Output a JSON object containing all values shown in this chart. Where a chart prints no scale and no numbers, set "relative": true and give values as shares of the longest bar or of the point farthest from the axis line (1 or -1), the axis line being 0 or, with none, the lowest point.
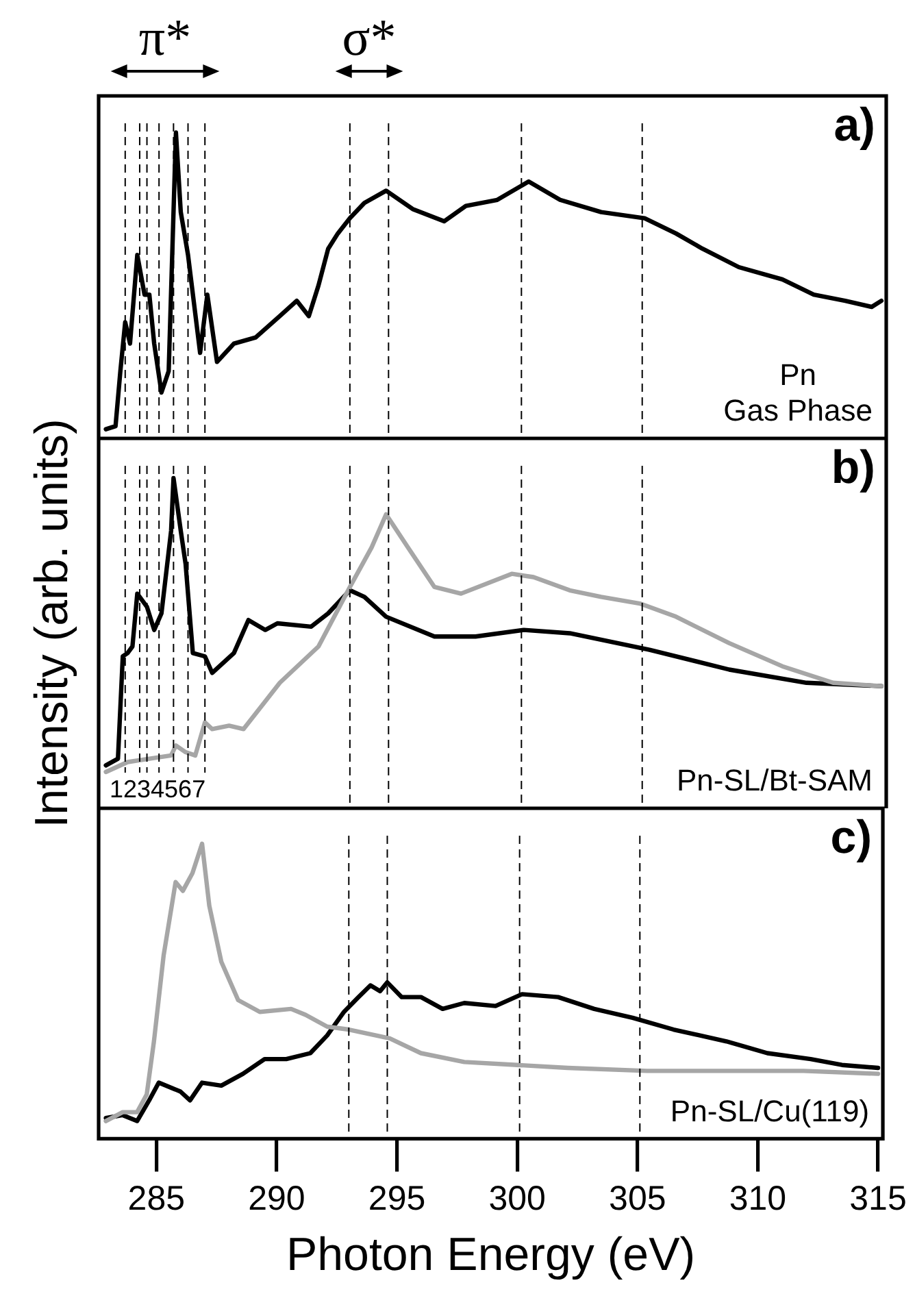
{
  "chart_data": [
    {
      "type": "line",
      "relative": true,
      "marker": "none",
      "tick_labels": false,
      "xlim": [
        282.6,
        315.2
      ],
      "xticks": [
        285,
        290,
        295,
        300,
        305,
        310,
        315
      ],
      "annotations": [
        "a)",
        "π*",
        "σ*",
        "Pn",
        "Gas Phase"
      ],
      "ref_lines": [
        {
          "axis": "x",
          "value": 283.7,
          "line_style": "dashed"
        },
        {
          "axis": "x",
          "value": 284.3,
          "line_style": "dashed"
        },
        {
          "axis": "x",
          "value": 284.6,
          "line_style": "dashed"
        },
        {
          "axis": "x",
          "value": 285.1,
          "line_style": "dashed"
        },
        {
          "axis": "x",
          "value": 285.7,
          "line_style": "dashed"
        },
        {
          "axis": "x",
          "value": 286.3,
          "line_style": "dashed"
        },
        {
          "axis": "x",
          "value": 287.0,
          "line_style": "dashed"
        },
        {
          "axis": "x",
          "value": 293.0,
          "line_style": "dashed"
        },
        {
          "axis": "x",
          "value": 294.6,
          "line_style": "dashed"
        },
        {
          "axis": "x",
          "value": 300.1,
          "line_style": "dashed"
        },
        {
          "axis": "x",
          "value": 305.1,
          "line_style": "dashed"
        }
      ],
      "series": [
        {
          "color": "#000000",
          "x": [
            282.9,
            283.3,
            283.5,
            283.7,
            283.9,
            284.2,
            284.5,
            284.7,
            284.9,
            285.2,
            285.5,
            285.8,
            286.0,
            286.3,
            286.8,
            287.1,
            287.5,
            288.2,
            289.1,
            290.1,
            290.8,
            291.3,
            291.7,
            292.1,
            292.5,
            293.0,
            293.6,
            294.5,
            295.6,
            296.9,
            297.8,
            299.1,
            300.4,
            301.7,
            303.4,
            305.2,
            306.5,
            307.6,
            309.1,
            310.9,
            312.2,
            313.5,
            314.6,
            315.0
          ],
          "values": [
            0.03,
            0.04,
            0.22,
            0.38,
            0.31,
            0.6,
            0.47,
            0.47,
            0.31,
            0.15,
            0.22,
            1,
            0.74,
            0.6,
            0.28,
            0.47,
            0.25,
            0.31,
            0.33,
            0.4,
            0.45,
            0.4,
            0.5,
            0.62,
            0.67,
            0.72,
            0.77,
            0.81,
            0.75,
            0.71,
            0.76,
            0.78,
            0.84,
            0.78,
            0.74,
            0.72,
            0.67,
            0.62,
            0.56,
            0.52,
            0.47,
            0.45,
            0.43,
            0.45
          ]
        }
      ]
    },
    {
      "type": "line",
      "relative": true,
      "marker": "none",
      "tick_labels": false,
      "xlim": [
        282.6,
        315.2
      ],
      "xticks": [
        285,
        290,
        295,
        300,
        305,
        310,
        315
      ],
      "ylabel": "Intensity (arb. units)",
      "annotations": [
        "b)",
        "1234567",
        "Pn-SL/Bt-SAM"
      ],
      "ref_lines": [
        {
          "axis": "x",
          "value": 283.7,
          "line_style": "dashed"
        },
        {
          "axis": "x",
          "value": 284.3,
          "line_style": "dashed"
        },
        {
          "axis": "x",
          "value": 284.6,
          "line_style": "dashed"
        },
        {
          "axis": "x",
          "value": 285.1,
          "line_style": "dashed"
        },
        {
          "axis": "x",
          "value": 285.7,
          "line_style": "dashed"
        },
        {
          "axis": "x",
          "value": 286.3,
          "line_style": "dashed"
        },
        {
          "axis": "x",
          "value": 287.0,
          "line_style": "dashed"
        },
        {
          "axis": "x",
          "value": 293.0,
          "line_style": "dashed"
        },
        {
          "axis": "x",
          "value": 294.6,
          "line_style": "dashed"
        },
        {
          "axis": "x",
          "value": 300.1,
          "line_style": "dashed"
        },
        {
          "axis": "x",
          "value": 305.1,
          "line_style": "dashed"
        }
      ],
      "series": [
        {
          "color": "#a6a6a6",
          "x": [
            282.9,
            283.8,
            284.7,
            285.6,
            285.8,
            286.2,
            286.6,
            287.0,
            287.3,
            288.0,
            288.6,
            290.1,
            291.7,
            293.0,
            293.9,
            294.5,
            295.4,
            296.5,
            297.6,
            299.7,
            300.6,
            302.1,
            303.4,
            305.0,
            306.5,
            308.7,
            310.9,
            313.0,
            315.0
          ],
          "values": [
            0.11,
            0.14,
            0.15,
            0.16,
            0.19,
            0.17,
            0.16,
            0.26,
            0.24,
            0.25,
            0.24,
            0.38,
            0.49,
            0.67,
            0.79,
            0.89,
            0.79,
            0.67,
            0.65,
            0.71,
            0.7,
            0.66,
            0.64,
            0.62,
            0.58,
            0.5,
            0.43,
            0.38,
            0.37
          ]
        },
        {
          "color": "#000000",
          "x": [
            282.9,
            283.4,
            283.6,
            283.8,
            284.0,
            284.2,
            284.6,
            284.9,
            285.2,
            285.6,
            285.7,
            286.0,
            286.2,
            286.5,
            287.0,
            287.3,
            288.2,
            288.8,
            289.5,
            290.0,
            291.4,
            292.1,
            293.0,
            293.6,
            294.5,
            296.5,
            298.2,
            300.2,
            302.1,
            305.4,
            308.7,
            311.9,
            315.0
          ],
          "values": [
            0.13,
            0.15,
            0.46,
            0.47,
            0.49,
            0.65,
            0.61,
            0.54,
            0.59,
            0.84,
            1,
            0.84,
            0.74,
            0.47,
            0.46,
            0.41,
            0.47,
            0.57,
            0.54,
            0.56,
            0.55,
            0.59,
            0.66,
            0.64,
            0.58,
            0.52,
            0.52,
            0.54,
            0.53,
            0.48,
            0.42,
            0.38,
            0.37
          ]
        }
      ]
    },
    {
      "type": "line",
      "relative": true,
      "marker": "none",
      "tick_labels": "x",
      "xlim": [
        282.6,
        315.2
      ],
      "xticks": [
        285,
        290,
        295,
        300,
        305,
        310,
        315
      ],
      "xlabel": "Photon Energy (eV)",
      "annotations": [
        "c)",
        "Pn-SL/Cu(119)"
      ],
      "ref_lines": [
        {
          "axis": "x",
          "value": 293.0,
          "line_style": "dashed"
        },
        {
          "axis": "x",
          "value": 294.6,
          "line_style": "dashed"
        },
        {
          "axis": "x",
          "value": 300.1,
          "line_style": "dashed"
        },
        {
          "axis": "x",
          "value": 305.1,
          "line_style": "dashed"
        }
      ],
      "series": [
        {
          "color": "#a6a6a6",
          "x": [
            282.9,
            283.6,
            284.2,
            284.6,
            284.9,
            285.3,
            285.8,
            286.1,
            286.5,
            286.9,
            287.2,
            287.7,
            288.4,
            289.3,
            290.6,
            291.2,
            292.1,
            293.0,
            294.7,
            296.0,
            297.8,
            300.0,
            302.1,
            305.4,
            308.7,
            311.9,
            315.0
          ],
          "values": [
            0.06,
            0.09,
            0.09,
            0.15,
            0.33,
            0.62,
            0.87,
            0.84,
            0.9,
            1,
            0.79,
            0.6,
            0.47,
            0.43,
            0.44,
            0.42,
            0.38,
            0.37,
            0.34,
            0.29,
            0.26,
            0.25,
            0.24,
            0.23,
            0.23,
            0.23,
            0.22
          ]
        },
        {
          "color": "#000000",
          "x": [
            282.9,
            283.6,
            284.2,
            284.7,
            285.1,
            286.0,
            286.4,
            286.9,
            287.7,
            288.6,
            289.5,
            290.4,
            291.4,
            292.1,
            292.8,
            293.4,
            293.9,
            294.3,
            294.6,
            295.2,
            296.0,
            296.9,
            297.8,
            299.1,
            300.2,
            301.7,
            303.2,
            304.8,
            306.5,
            308.7,
            310.4,
            312.2,
            313.5,
            315.0
          ],
          "values": [
            0.07,
            0.08,
            0.06,
            0.13,
            0.19,
            0.16,
            0.13,
            0.19,
            0.18,
            0.22,
            0.27,
            0.27,
            0.29,
            0.35,
            0.43,
            0.48,
            0.52,
            0.5,
            0.53,
            0.48,
            0.48,
            0.44,
            0.46,
            0.45,
            0.49,
            0.48,
            0.44,
            0.41,
            0.37,
            0.33,
            0.29,
            0.27,
            0.25,
            0.24
          ]
        }
      ]
    }
  ]
}
